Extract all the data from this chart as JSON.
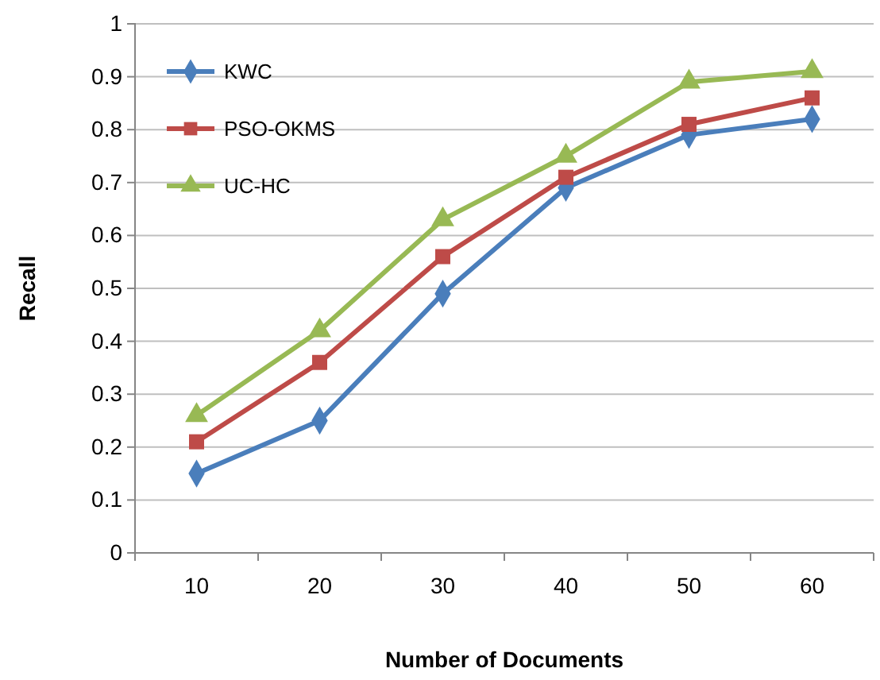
{
  "chart_data": {
    "type": "line",
    "xlabel": "Number of Documents",
    "ylabel": "Recall",
    "categories": [
      "10",
      "20",
      "30",
      "40",
      "50",
      "60"
    ],
    "series": [
      {
        "name": "KWC",
        "color": "#4a7ebb",
        "marker": "diamond",
        "values": [
          0.15,
          0.25,
          0.49,
          0.69,
          0.79,
          0.82
        ]
      },
      {
        "name": "PSO-OKMS",
        "color": "#be4b48",
        "marker": "square",
        "values": [
          0.21,
          0.36,
          0.56,
          0.71,
          0.81,
          0.86
        ]
      },
      {
        "name": "UC-HC",
        "color": "#98b954",
        "marker": "triangle",
        "values": [
          0.26,
          0.42,
          0.63,
          0.75,
          0.89,
          0.91
        ]
      }
    ],
    "ylim": [
      0,
      1
    ],
    "yticks": [
      0,
      0.1,
      0.2,
      0.3,
      0.4,
      0.5,
      0.6,
      0.7,
      0.8,
      0.9,
      1
    ],
    "grid": "y",
    "legend": "top left",
    "line_style": "solid"
  }
}
